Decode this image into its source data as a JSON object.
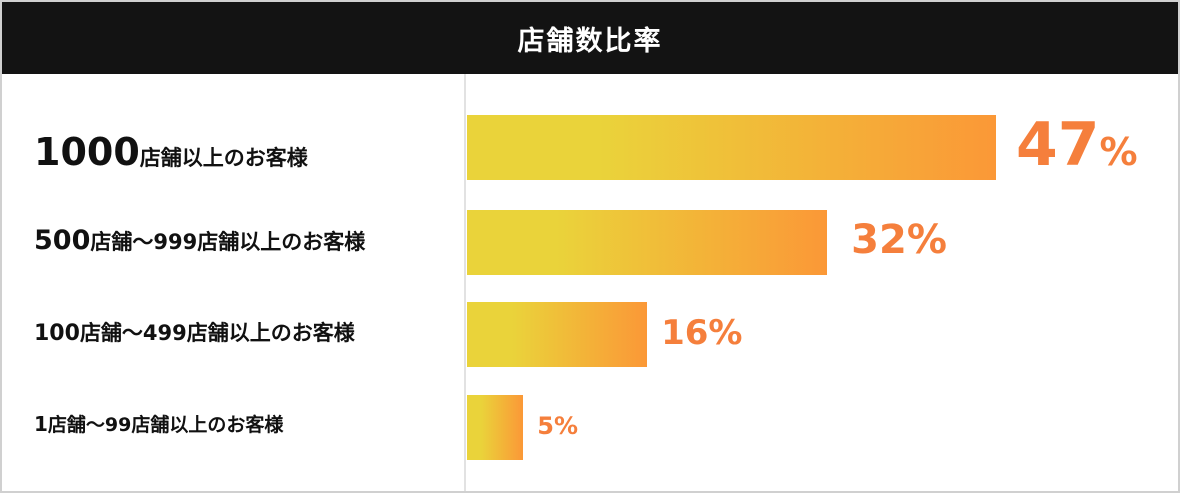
{
  "chart_data": {
    "type": "bar",
    "orientation": "horizontal",
    "title": "店舗数比率",
    "categories": [
      {
        "num": "1000",
        "text": "店舗以上のお客様"
      },
      {
        "num": "500",
        "text": "店舗〜999店舗以上のお客様"
      },
      {
        "num": "100",
        "text": "店舗〜499店舗以上のお客様"
      },
      {
        "num": "1",
        "text": "店舗〜99店舗以上のお客様"
      }
    ],
    "values": [
      47,
      32,
      16,
      5
    ],
    "value_labels": [
      {
        "num": "47",
        "unit": "%"
      },
      {
        "num": "32",
        "unit": "%"
      },
      {
        "num": "16",
        "unit": "%"
      },
      {
        "num": "5",
        "unit": "%"
      }
    ],
    "colors": {
      "bar_start": "#ead33a",
      "bar_end": "#fb9837",
      "value_text": "#f57f3c",
      "header_bg": "#131313"
    }
  }
}
